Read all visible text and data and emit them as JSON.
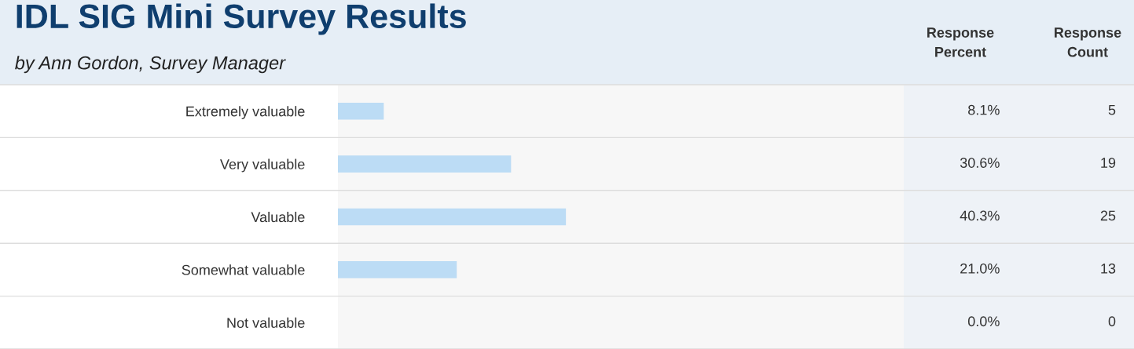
{
  "chart_data": {
    "type": "bar",
    "orientation": "horizontal",
    "title": "IDL SIG Mini Survey Results",
    "subtitle": "by Ann Gordon, Survey Manager",
    "categories": [
      "Extremely valuable",
      "Very valuable",
      "Valuable",
      "Somewhat valuable",
      "Not valuable"
    ],
    "values": [
      8.1,
      30.6,
      40.3,
      21.0,
      0.0
    ],
    "value_labels": [
      "8.1%",
      "30.6%",
      "40.3%",
      "21.0%",
      "0.0%"
    ],
    "color": "#bcdcf5",
    "xlim": [
      0,
      100
    ],
    "tick_labels": "y",
    "grid": false,
    "annotations": [
      "Response\nPercent",
      "Response\nCount",
      "5",
      "19",
      "25",
      "13",
      "0"
    ]
  }
}
